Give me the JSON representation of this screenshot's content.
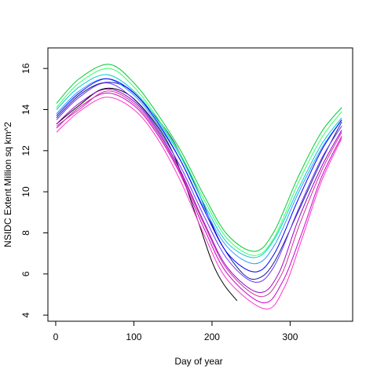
{
  "chart_data": {
    "type": "line",
    "title": "",
    "xlabel": "Day of year",
    "ylabel": "NSIDC Extent Million sq km^2",
    "xlim": [
      -10,
      380
    ],
    "ylim": [
      3.7,
      17.0
    ],
    "xticks": [
      0,
      100,
      200,
      300
    ],
    "yticks": [
      4,
      6,
      8,
      10,
      12,
      14,
      16
    ],
    "grid": false,
    "legend": "none",
    "series": [
      {
        "color": "#000000",
        "x": [
          1,
          30,
          60,
          90,
          120,
          150,
          180,
          200,
          215,
          232
        ],
        "y": [
          13.3,
          14.2,
          15.0,
          14.8,
          13.7,
          11.9,
          8.8,
          6.6,
          5.5,
          4.7
        ]
      },
      {
        "color": "#1a1a99",
        "x": [
          1,
          30,
          60,
          90,
          120,
          150,
          180,
          210,
          240,
          260,
          280,
          310,
          340,
          366
        ],
        "y": [
          13.6,
          14.7,
          15.3,
          15.1,
          14.0,
          12.5,
          10.2,
          7.6,
          6.0,
          5.8,
          6.6,
          9.0,
          11.5,
          13.4
        ]
      },
      {
        "color": "#00cc33",
        "x": [
          1,
          30,
          68,
          100,
          130,
          160,
          190,
          220,
          255,
          280,
          310,
          340,
          366
        ],
        "y": [
          14.3,
          15.5,
          16.2,
          15.3,
          13.8,
          12.0,
          9.8,
          7.9,
          7.1,
          8.1,
          10.7,
          12.9,
          14.1
        ]
      },
      {
        "color": "#33ff66",
        "x": [
          1,
          30,
          68,
          100,
          130,
          160,
          190,
          220,
          255,
          280,
          310,
          340,
          366
        ],
        "y": [
          14.1,
          15.3,
          16.0,
          15.1,
          13.6,
          11.8,
          9.6,
          7.7,
          6.9,
          7.8,
          10.4,
          12.6,
          13.9
        ]
      },
      {
        "color": "#00cccc",
        "x": [
          1,
          30,
          65,
          100,
          130,
          160,
          190,
          220,
          255,
          280,
          310,
          340,
          366
        ],
        "y": [
          14.0,
          15.1,
          15.7,
          14.9,
          13.5,
          11.7,
          9.4,
          7.5,
          6.8,
          7.7,
          10.1,
          12.3,
          13.6
        ]
      },
      {
        "color": "#3399ff",
        "x": [
          1,
          30,
          65,
          100,
          130,
          160,
          190,
          220,
          255,
          280,
          310,
          340,
          366
        ],
        "y": [
          13.8,
          14.9,
          15.5,
          14.7,
          13.3,
          11.5,
          9.2,
          7.3,
          6.5,
          7.4,
          9.9,
          12.1,
          13.5
        ]
      },
      {
        "color": "#0000ff",
        "x": [
          1,
          30,
          65,
          100,
          130,
          160,
          190,
          220,
          255,
          280,
          310,
          340,
          366
        ],
        "y": [
          13.7,
          14.8,
          15.5,
          14.8,
          13.4,
          11.5,
          9.1,
          7.0,
          6.1,
          7.0,
          9.6,
          12.0,
          13.5
        ]
      },
      {
        "color": "#6633ff",
        "x": [
          1,
          30,
          65,
          100,
          130,
          160,
          190,
          220,
          255,
          280,
          310,
          340,
          366
        ],
        "y": [
          13.5,
          14.6,
          15.3,
          14.5,
          13.1,
          11.2,
          8.8,
          6.7,
          5.6,
          6.4,
          9.1,
          11.6,
          13.2
        ]
      },
      {
        "color": "#9900cc",
        "x": [
          1,
          30,
          65,
          100,
          130,
          160,
          190,
          220,
          260,
          285,
          310,
          340,
          366
        ],
        "y": [
          13.3,
          14.3,
          15.0,
          14.4,
          13.0,
          11.0,
          8.5,
          6.3,
          5.1,
          6.0,
          8.6,
          11.2,
          13.0
        ]
      },
      {
        "color": "#cc00cc",
        "x": [
          1,
          30,
          65,
          100,
          130,
          160,
          190,
          220,
          265,
          290,
          315,
          340,
          366
        ],
        "y": [
          13.1,
          14.1,
          14.8,
          14.2,
          12.8,
          10.8,
          8.2,
          6.0,
          4.6,
          5.6,
          8.0,
          10.7,
          12.7
        ]
      },
      {
        "color": "#ff33cc",
        "x": [
          1,
          30,
          65,
          100,
          130,
          160,
          190,
          220,
          268,
          292,
          315,
          340,
          366
        ],
        "y": [
          12.9,
          13.9,
          14.6,
          14.0,
          12.6,
          10.5,
          7.9,
          5.7,
          4.3,
          5.3,
          7.7,
          10.5,
          12.6
        ]
      },
      {
        "color": "#cc3399",
        "x": [
          1,
          30,
          65,
          100,
          130,
          160,
          190,
          220,
          262,
          288,
          312,
          340,
          366
        ],
        "y": [
          13.2,
          14.0,
          14.9,
          14.3,
          12.9,
          10.9,
          8.4,
          6.2,
          4.9,
          5.9,
          8.4,
          11.0,
          12.9
        ]
      }
    ]
  }
}
